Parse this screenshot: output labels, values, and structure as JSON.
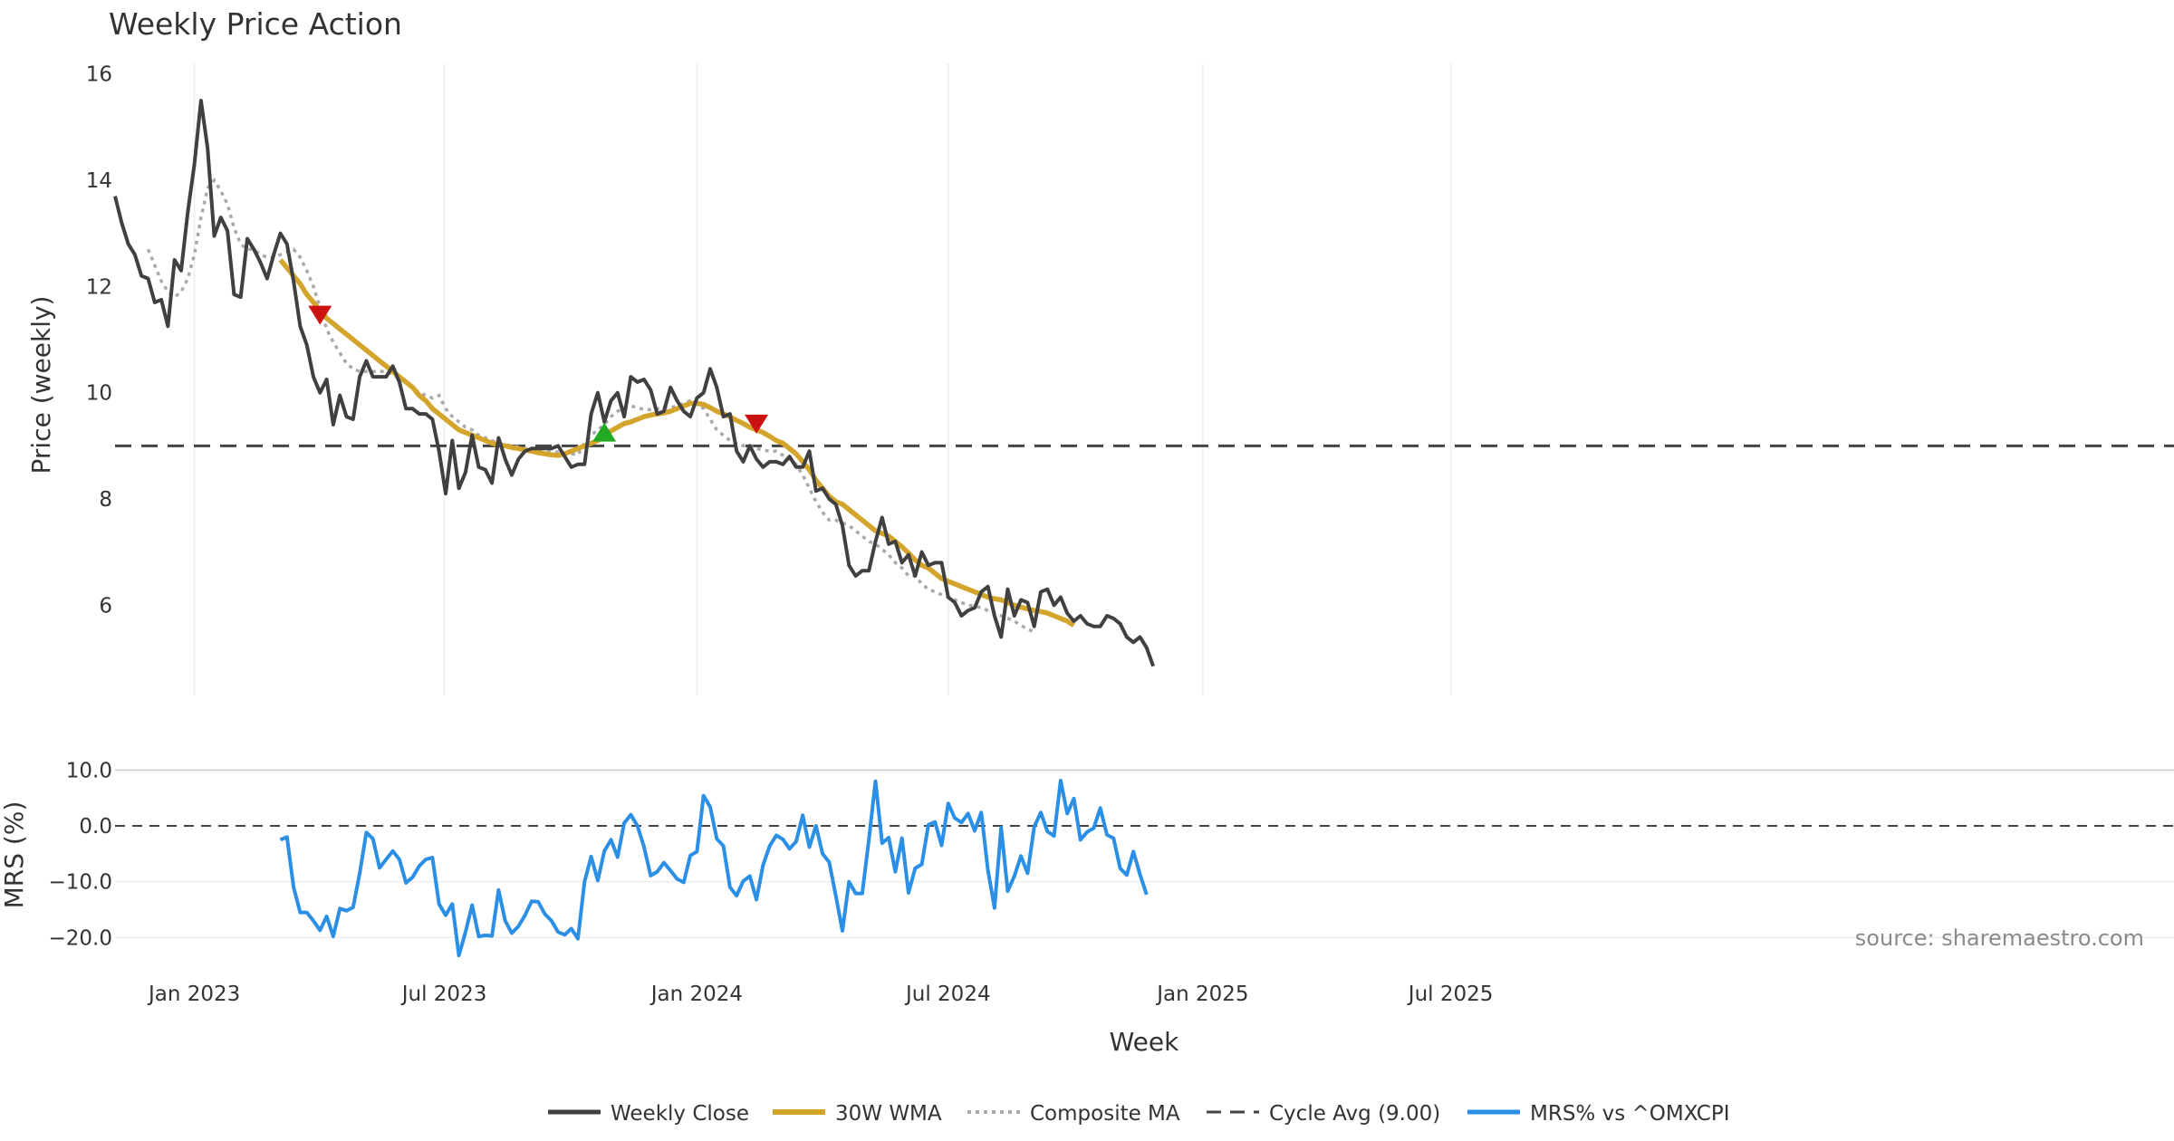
{
  "chart_data": {
    "type": "line",
    "title": "Weekly Price Action",
    "source_text": "source: sharemaestro.com",
    "x_ticks": [
      "Jan 2023",
      "Jul 2023",
      "Jan 2024",
      "Jul 2024",
      "Jan 2025",
      "Jul 2025"
    ],
    "xlabel": "Week",
    "colors": {
      "close": "#404040",
      "wma": "#d4a52c",
      "composite": "#aaaaaa",
      "cycle": "#444444",
      "mrs": "#2b8fe6",
      "sell": "#cc1111",
      "buy": "#22aa22",
      "grid": "#eeeeee"
    },
    "price_panel": {
      "ylabel": "Price (weekly)",
      "ylim": [
        4.3,
        16.2
      ],
      "y_ticks": [
        16,
        14,
        12,
        10,
        8,
        6
      ],
      "cycle_avg": 9.0,
      "close": [
        13.7,
        13.2,
        12.8,
        12.6,
        12.2,
        12.15,
        11.7,
        11.75,
        11.25,
        12.5,
        12.3,
        13.4,
        14.3,
        15.5,
        14.6,
        12.95,
        13.3,
        13.05,
        11.85,
        11.8,
        12.9,
        12.7,
        12.45,
        12.15,
        12.6,
        13.0,
        12.8,
        12.1,
        11.25,
        10.9,
        10.3,
        10.0,
        10.25,
        9.4,
        9.95,
        9.55,
        9.5,
        10.3,
        10.6,
        10.3,
        10.3,
        10.3,
        10.5,
        10.2,
        9.7,
        9.7,
        9.6,
        9.6,
        9.5,
        8.9,
        8.1,
        9.1,
        8.2,
        8.5,
        9.2,
        8.6,
        8.55,
        8.3,
        9.15,
        8.75,
        8.45,
        8.75,
        8.9,
        8.95,
        8.95,
        8.95,
        8.95,
        9.0,
        8.8,
        8.6,
        8.65,
        8.65,
        9.6,
        10.0,
        9.45,
        9.85,
        10.0,
        9.55,
        10.3,
        10.2,
        10.25,
        10.05,
        9.6,
        9.65,
        10.1,
        9.85,
        9.65,
        9.55,
        9.9,
        10.0,
        10.45,
        10.1,
        9.55,
        9.6,
        8.9,
        8.7,
        9.0,
        8.75,
        8.6,
        8.7,
        8.7,
        8.65,
        8.8,
        8.6,
        8.6,
        8.9,
        8.15,
        8.2,
        8.0,
        7.9,
        7.5,
        6.75,
        6.55,
        6.65,
        6.65,
        7.2,
        7.65,
        7.15,
        7.2,
        6.8,
        6.95,
        6.55,
        7.0,
        6.75,
        6.8,
        6.8,
        6.15,
        6.05,
        5.8,
        5.9,
        5.95,
        6.25,
        6.35,
        5.8,
        5.4,
        6.3,
        5.8,
        6.1,
        6.05,
        5.6,
        6.25,
        6.3,
        6.0,
        6.15,
        5.85,
        5.7,
        5.8,
        5.65,
        5.6,
        5.6,
        5.8,
        5.75,
        5.65,
        5.4,
        5.3,
        5.4,
        5.2,
        4.85
      ],
      "wma_start": 25,
      "wma": [
        12.5,
        12.35,
        12.2,
        12.05,
        11.85,
        11.7,
        11.55,
        11.4,
        11.3,
        11.2,
        11.1,
        11.0,
        10.9,
        10.8,
        10.7,
        10.6,
        10.5,
        10.4,
        10.3,
        10.2,
        10.1,
        9.95,
        9.85,
        9.7,
        9.6,
        9.5,
        9.4,
        9.3,
        9.25,
        9.2,
        9.15,
        9.1,
        9.05,
        9.02,
        9.0,
        8.97,
        8.95,
        8.92,
        8.9,
        8.87,
        8.85,
        8.83,
        8.82,
        8.85,
        8.9,
        8.95,
        9.0,
        9.05,
        9.1,
        9.2,
        9.28,
        9.35,
        9.42,
        9.45,
        9.5,
        9.55,
        9.58,
        9.6,
        9.62,
        9.65,
        9.7,
        9.75,
        9.8,
        9.8,
        9.78,
        9.72,
        9.65,
        9.6,
        9.55,
        9.48,
        9.42,
        9.35,
        9.3,
        9.25,
        9.18,
        9.1,
        9.05,
        8.95,
        8.85,
        8.7,
        8.55,
        8.35,
        8.2,
        8.05,
        7.95,
        7.9,
        7.8,
        7.7,
        7.6,
        7.5,
        7.4,
        7.35,
        7.3,
        7.2,
        7.1,
        6.98,
        6.85,
        6.75,
        6.7,
        6.6,
        6.5,
        6.45,
        6.4,
        6.35,
        6.3,
        6.25,
        6.2,
        6.15,
        6.12,
        6.1,
        6.05,
        6.0,
        5.96,
        5.93,
        5.9,
        5.88,
        5.85,
        5.8,
        5.75,
        5.7,
        5.62
      ],
      "comp_start": 5,
      "composite": [
        12.7,
        12.4,
        12.1,
        11.9,
        11.8,
        11.9,
        12.15,
        12.6,
        13.3,
        13.85,
        14.0,
        13.8,
        13.55,
        13.1,
        12.8,
        12.7,
        12.7,
        12.6,
        12.55,
        12.55,
        12.6,
        12.65,
        12.7,
        12.55,
        12.3,
        12.0,
        11.6,
        11.2,
        10.95,
        10.75,
        10.55,
        10.45,
        10.4,
        10.4,
        10.4,
        10.4,
        10.4,
        10.35,
        10.25,
        10.2,
        10.1,
        10.0,
        9.95,
        9.9,
        9.95,
        9.7,
        9.55,
        9.45,
        9.35,
        9.3,
        9.2,
        9.15,
        9.1,
        9.05,
        9.02,
        9.0,
        8.98,
        8.95,
        8.95,
        8.95,
        8.93,
        8.9,
        8.88,
        8.85,
        8.85,
        8.83,
        9.05,
        9.2,
        9.3,
        9.4,
        9.55,
        9.65,
        9.72,
        9.75,
        9.72,
        9.68,
        9.68,
        9.7,
        9.72,
        9.72,
        9.75,
        9.8,
        9.85,
        9.8,
        9.7,
        9.5,
        9.3,
        9.2,
        9.1,
        9.05,
        9.0,
        9.0,
        8.95,
        8.92,
        8.9,
        8.9,
        8.82,
        8.75,
        8.65,
        8.45,
        8.2,
        7.95,
        7.75,
        7.6,
        7.6,
        7.55,
        7.5,
        7.4,
        7.3,
        7.2,
        7.15,
        7.05,
        6.95,
        6.8,
        6.7,
        6.55,
        6.55,
        6.4,
        6.3,
        6.25,
        6.2,
        6.15,
        6.1,
        6.05,
        6.0,
        5.98,
        5.95,
        5.9,
        5.85,
        5.8,
        5.75,
        5.7,
        5.62,
        5.55,
        5.5
      ],
      "sell_signals": [
        {
          "i": 31,
          "v": 11.45
        },
        {
          "i": 97,
          "v": 9.4
        }
      ],
      "buy_signals": [
        {
          "i": 74,
          "v": 9.25
        }
      ]
    },
    "mrs_panel": {
      "ylabel": "MRS (%)",
      "ylim": [
        -24,
        12
      ],
      "y_ticks": [
        "10.0",
        "0.0",
        "−10.0",
        "−20.0"
      ],
      "y_tick_values": [
        10,
        0,
        -10,
        -20
      ],
      "start": 25,
      "values": [
        -2.5,
        -2.0,
        -11.0,
        -15.5,
        -15.5,
        -17.0,
        -18.7,
        -16.2,
        -19.8,
        -14.8,
        -15.2,
        -14.6,
        -8.5,
        -1.2,
        -2.3,
        -7.5,
        -6.0,
        -4.5,
        -6.0,
        -10.2,
        -9.2,
        -7.2,
        -6.0,
        -5.7,
        -14.0,
        -16.0,
        -14.0,
        -23.2,
        -19.0,
        -14.2,
        -19.8,
        -19.6,
        -19.7,
        -11.5,
        -17.0,
        -19.2,
        -18.0,
        -16.0,
        -13.5,
        -13.6,
        -15.8,
        -17.0,
        -19.0,
        -19.5,
        -18.4,
        -20.2,
        -10.0,
        -5.5,
        -9.8,
        -4.5,
        -2.5,
        -5.6,
        0.5,
        2.0,
        0.0,
        -3.8,
        -8.9,
        -8.2,
        -6.6,
        -8.0,
        -9.5,
        -10.1,
        -5.3,
        -4.6,
        5.4,
        3.4,
        -2.3,
        -3.6,
        -11.0,
        -12.5,
        -9.9,
        -9.0,
        -13.2,
        -7.0,
        -3.6,
        -1.7,
        -2.4,
        -4.1,
        -2.8,
        1.9,
        -3.8,
        0.0,
        -5.0,
        -6.5,
        -12.5,
        -18.8,
        -10.0,
        -12.1,
        -12.1,
        -2.5,
        8.0,
        -3.1,
        -2.1,
        -8.2,
        -2.2,
        -12.0,
        -7.6,
        -6.9,
        0.2,
        0.7,
        -3.5,
        4.0,
        1.4,
        0.6,
        2.2,
        -0.9,
        2.4,
        -7.9,
        -14.7,
        -0.3,
        -11.7,
        -9.0,
        -5.4,
        -8.5,
        -0.2,
        2.4,
        -1.0,
        -1.8,
        8.1,
        2.2,
        4.9,
        -2.5,
        -1.1,
        -0.4,
        3.2,
        -1.6,
        -2.2,
        -7.6,
        -8.8,
        -4.6,
        -8.7,
        -12.3
      ]
    },
    "legend": [
      {
        "label": "Weekly Close",
        "style": "solid-dark"
      },
      {
        "label": "30W WMA",
        "style": "solid-gold"
      },
      {
        "label": "Composite MA",
        "style": "dotted-grey"
      },
      {
        "label": "Cycle Avg (9.00)",
        "style": "dashed-dark"
      },
      {
        "label": "MRS% vs ^OMXCPI",
        "style": "solid-blue"
      }
    ]
  }
}
